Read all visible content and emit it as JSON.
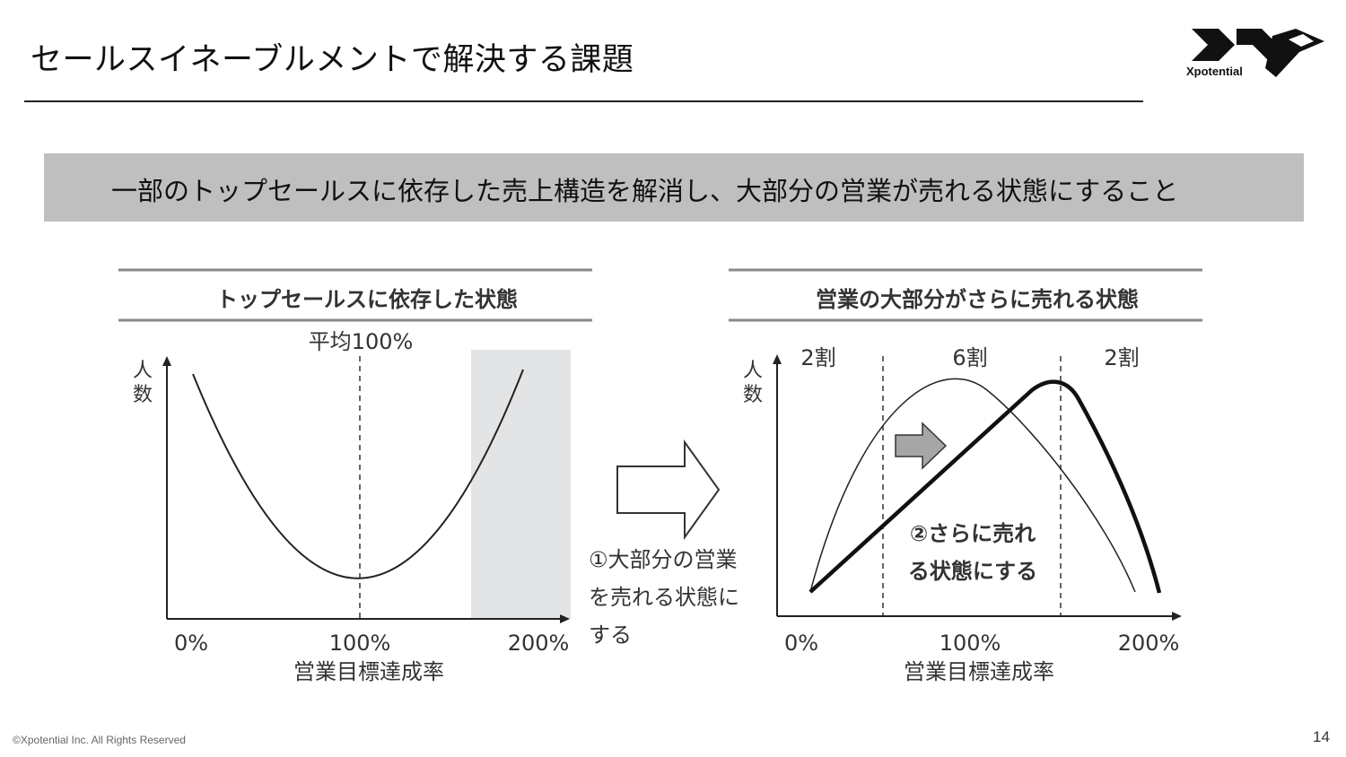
{
  "slide": {
    "title": "セールスイネーブルメントで解決する課題",
    "banner": "一部のトップセールスに依存した売上構造を解消し、大部分の営業が売れる状態にすること",
    "footer": "©Xpotential Inc. All Rights Reserved",
    "page_number": "14",
    "logo_text": "Xpotential"
  },
  "left_panel": {
    "title": "トップセールスに依存した状態",
    "avg_label": "平均100%",
    "y_label_line1": "人",
    "y_label_line2": "数",
    "x_ticks": [
      "0%",
      "100%",
      "200%"
    ],
    "x_label": "営業目標達成率"
  },
  "transition": {
    "line1": "①大部分の営業",
    "line2": "を売れる状態に",
    "line3": "する"
  },
  "right_panel": {
    "title": "営業の大部分がさらに売れる状態",
    "segments": [
      "2割",
      "6割",
      "2割"
    ],
    "y_label_line1": "人",
    "y_label_line2": "数",
    "annotation_line1": "②さらに売れ",
    "annotation_line2": "る状態にする",
    "x_ticks": [
      "0%",
      "100%",
      "200%"
    ],
    "x_label": "営業目標達成率"
  },
  "colors": {
    "highlight": "#e3e4e6",
    "banner": "#bfbfbf",
    "arrow_gray": "#a6a6a6"
  }
}
